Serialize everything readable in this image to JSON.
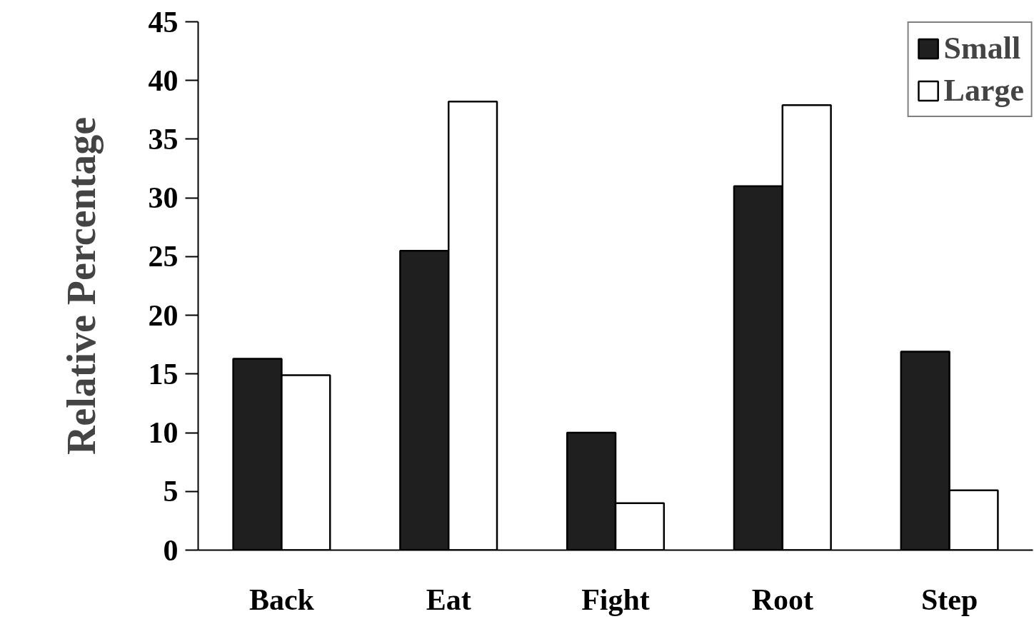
{
  "chart_data": {
    "type": "bar",
    "ylabel": "Relative Percentage",
    "categories": [
      "Back",
      "Eat",
      "Fight",
      "Root",
      "Step"
    ],
    "series": [
      {
        "name": "Small",
        "color": "#1f1f1f",
        "values": [
          16.3,
          25.5,
          10.0,
          31.0,
          16.9
        ]
      },
      {
        "name": "Large",
        "color": "#ffffff",
        "values": [
          14.9,
          38.2,
          4.0,
          37.9,
          5.1
        ]
      }
    ],
    "ylim": [
      0,
      45
    ],
    "yticks": [
      0,
      5,
      10,
      15,
      20,
      25,
      30,
      35,
      40,
      45
    ],
    "grid": false,
    "legend": "top right"
  }
}
